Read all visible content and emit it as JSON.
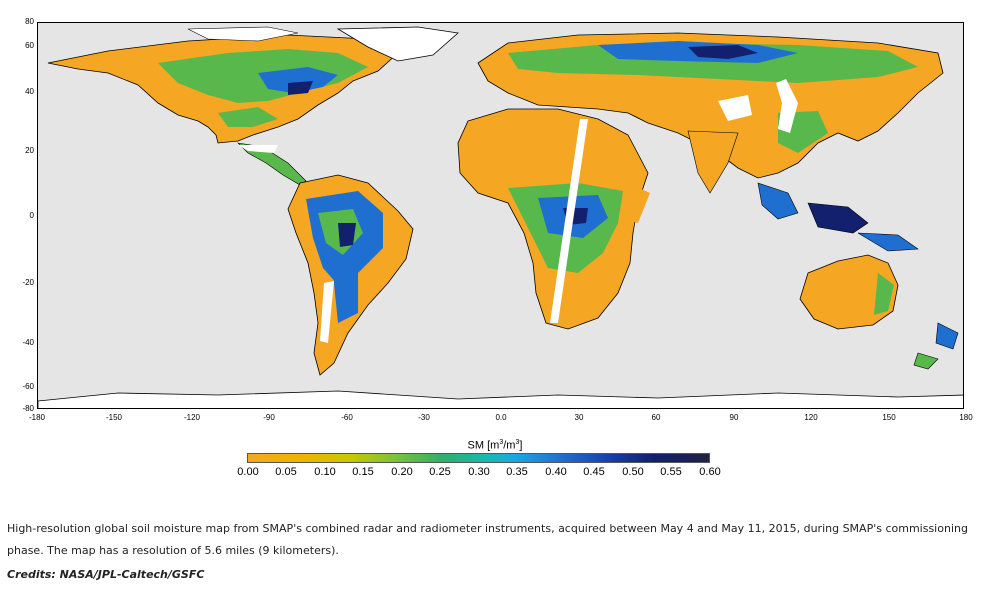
{
  "map": {
    "y_axis_ticks": [
      "80",
      "60",
      "40",
      "20",
      "0",
      "-20",
      "-40",
      "-60",
      "-80"
    ],
    "x_axis_ticks": [
      "-180",
      "-150",
      "-120",
      "-90",
      "-60",
      "-30",
      "0.0",
      "30",
      "60",
      "90",
      "120",
      "150",
      "180"
    ],
    "colors": {
      "ocean": "#e5e5e5",
      "dry": "#f5a623",
      "moderate": "#58b84c",
      "wet": "#1f6fd1",
      "very_wet": "#12206e",
      "no_data": "#ffffff"
    }
  },
  "colorbar": {
    "label": "SM [m",
    "label_sup1": "3",
    "label_mid": "/m",
    "label_sup2": "3",
    "label_end": "]",
    "ticks": [
      "0.00",
      "0.05",
      "0.10",
      "0.15",
      "0.20",
      "0.25",
      "0.30",
      "0.35",
      "0.40",
      "0.45",
      "0.50",
      "0.55",
      "0.60"
    ]
  },
  "caption": {
    "text": "High-resolution global soil moisture map from SMAP's combined radar and radiometer instruments, acquired between May 4 and May 11, 2015, during SMAP's commissioning phase. The map has a resolution of 5.6 miles (9 kilometers).",
    "credits": "Credits: NASA/JPL-Caltech/GSFC"
  }
}
